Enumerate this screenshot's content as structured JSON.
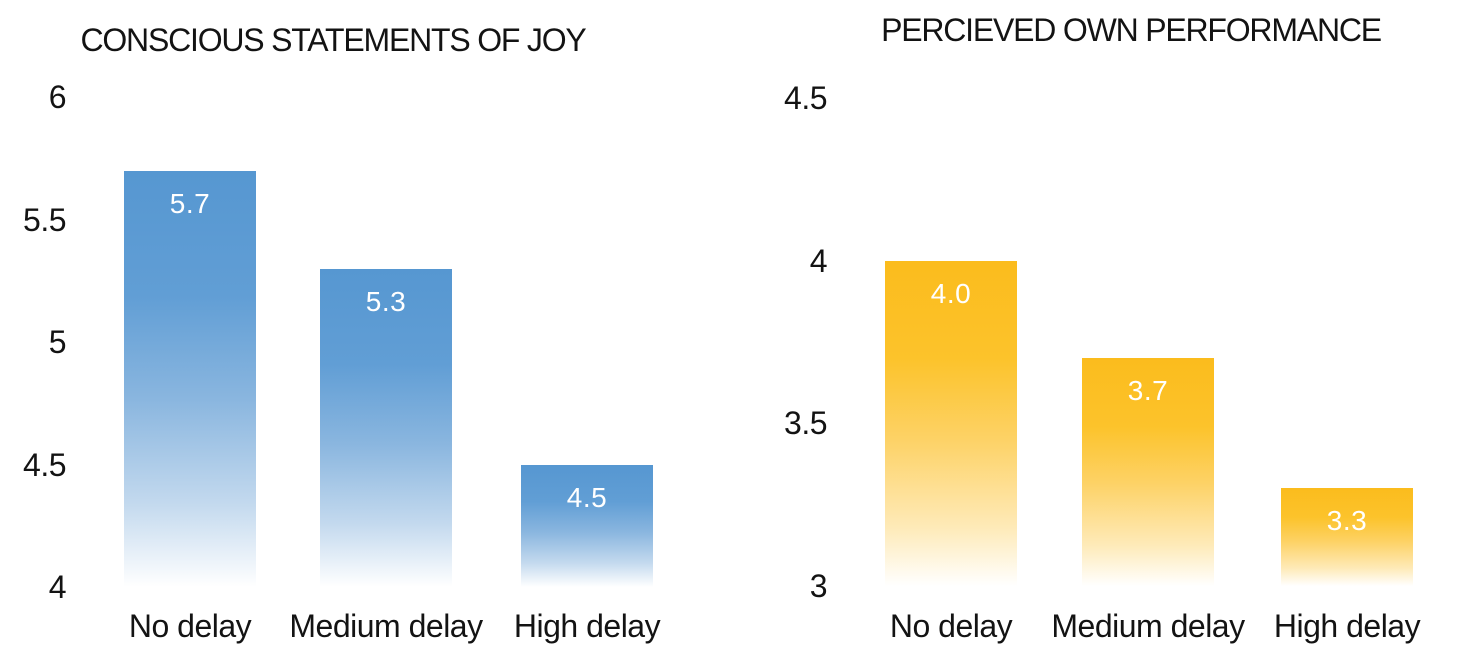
{
  "background": "#ffffff",
  "text_color": "#131313",
  "chart_data": [
    {
      "type": "bar",
      "title": "CONSCIOUS STATEMENTS OF JOY",
      "categories": [
        "No delay",
        "Medium delay",
        "High delay"
      ],
      "values": [
        5.7,
        5.3,
        4.5
      ],
      "value_labels": [
        "5.7",
        "5.3",
        "4.5"
      ],
      "value_label_color": "#ffffff",
      "ylim": [
        4,
        6
      ],
      "ytick_values": [
        6,
        5.5,
        5,
        4.5,
        4
      ],
      "ytick_labels": [
        "6",
        "5.5",
        "5",
        "4.5",
        "4"
      ],
      "xlabel": "",
      "ylabel": "",
      "grid": false,
      "legend": false,
      "bar_color": "#5B9BD5",
      "bar_style": "gradient fades to white at bar bottom"
    },
    {
      "type": "bar",
      "title": "PERCIEVED OWN PERFORMANCE",
      "categories": [
        "No delay",
        "Medium delay",
        "High delay"
      ],
      "values": [
        4.0,
        3.7,
        3.3
      ],
      "value_labels": [
        "4.0",
        "3.7",
        "3.3"
      ],
      "value_label_color": "#ffffff",
      "ylim": [
        3,
        4.5
      ],
      "ytick_values": [
        4.5,
        4,
        3.5,
        3
      ],
      "ytick_labels": [
        "4.5",
        "4",
        "3.5",
        "3"
      ],
      "xlabel": "",
      "ylabel": "",
      "grid": false,
      "legend": false,
      "bar_color": "#FCC22D",
      "bar_style": "gradient fades to white at bar bottom"
    }
  ]
}
